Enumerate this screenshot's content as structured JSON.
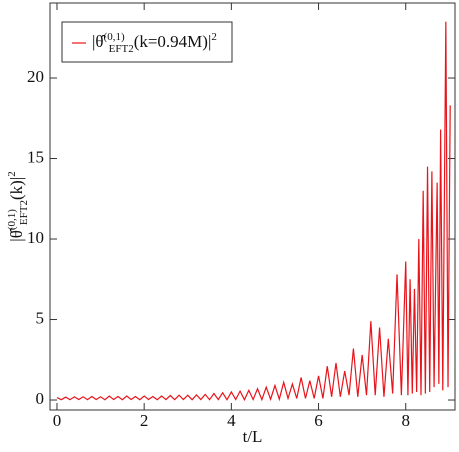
{
  "chart_data": {
    "type": "line",
    "xlabel": "t/L",
    "ylabel": [
      "|θ̂",
      "(0,1)",
      "EFT",
      "2",
      "(k)|",
      "2"
    ],
    "xlim": [
      -0.16,
      9.13
    ],
    "ylim": [
      -0.62,
      24.66
    ],
    "xticks": [
      0,
      2,
      4,
      6,
      8
    ],
    "yticks": [
      0,
      5,
      10,
      15,
      20
    ],
    "legend": "top-left",
    "series": [
      {
        "name": [
          "|θ̂",
          "(0,1)",
          "EFT",
          "2",
          "(k=0.94M)|",
          "2"
        ],
        "color": "#e8141b",
        "x": [
          0,
          0.1,
          0.2,
          0.3,
          0.4,
          0.5,
          0.6,
          0.7,
          0.8,
          0.9,
          1,
          1.1,
          1.2,
          1.3,
          1.4,
          1.5,
          1.6,
          1.7,
          1.8,
          1.9,
          2,
          2.1,
          2.2,
          2.3,
          2.4,
          2.5,
          2.6,
          2.7,
          2.8,
          2.9,
          3,
          3.1,
          3.2,
          3.3,
          3.4,
          3.5,
          3.6,
          3.7,
          3.8,
          3.9,
          4,
          4.1,
          4.2,
          4.3,
          4.4,
          4.5,
          4.6,
          4.7,
          4.8,
          4.9,
          5,
          5.1,
          5.2,
          5.3,
          5.4,
          5.5,
          5.6,
          5.7,
          5.8,
          5.9,
          6,
          6.1,
          6.2,
          6.3,
          6.4,
          6.5,
          6.6,
          6.7,
          6.8,
          6.9,
          7,
          7.1,
          7.2,
          7.3,
          7.4,
          7.5,
          7.6,
          7.7,
          7.8,
          7.9,
          8,
          8.05,
          8.1,
          8.15,
          8.2,
          8.25,
          8.3,
          8.35,
          8.4,
          8.45,
          8.5,
          8.55,
          8.6,
          8.65,
          8.72,
          8.76,
          8.8,
          8.85,
          8.92,
          8.97,
          9.02
        ],
        "values": [
          0.15,
          0.02,
          0.18,
          0.02,
          0.2,
          0.03,
          0.2,
          0.02,
          0.22,
          0.03,
          0.2,
          0.02,
          0.25,
          0.03,
          0.22,
          0.02,
          0.25,
          0.03,
          0.22,
          0.02,
          0.25,
          0.03,
          0.22,
          0.02,
          0.25,
          0.03,
          0.28,
          0.02,
          0.3,
          0.03,
          0.3,
          0.02,
          0.32,
          0.03,
          0.35,
          0.02,
          0.4,
          0.03,
          0.45,
          0.02,
          0.5,
          0.03,
          0.55,
          0.02,
          0.6,
          0.03,
          0.7,
          0.02,
          0.8,
          0.05,
          0.9,
          0.05,
          1.1,
          0.1,
          1.0,
          0.1,
          1.4,
          0.1,
          1.2,
          0.1,
          1.5,
          0.1,
          2.1,
          0.2,
          2.3,
          0.2,
          1.8,
          0.3,
          3.2,
          0.2,
          2.8,
          0.3,
          4.9,
          0.3,
          4.5,
          0.2,
          3.8,
          0.4,
          7.8,
          0.3,
          8.6,
          0.3,
          7.5,
          0.4,
          6.9,
          0.5,
          10.0,
          0.3,
          13.0,
          0.4,
          14.5,
          0.5,
          14.2,
          0.8,
          13.5,
          1.0,
          16.8,
          0.6,
          23.5,
          0.8,
          18.3
        ]
      }
    ]
  }
}
